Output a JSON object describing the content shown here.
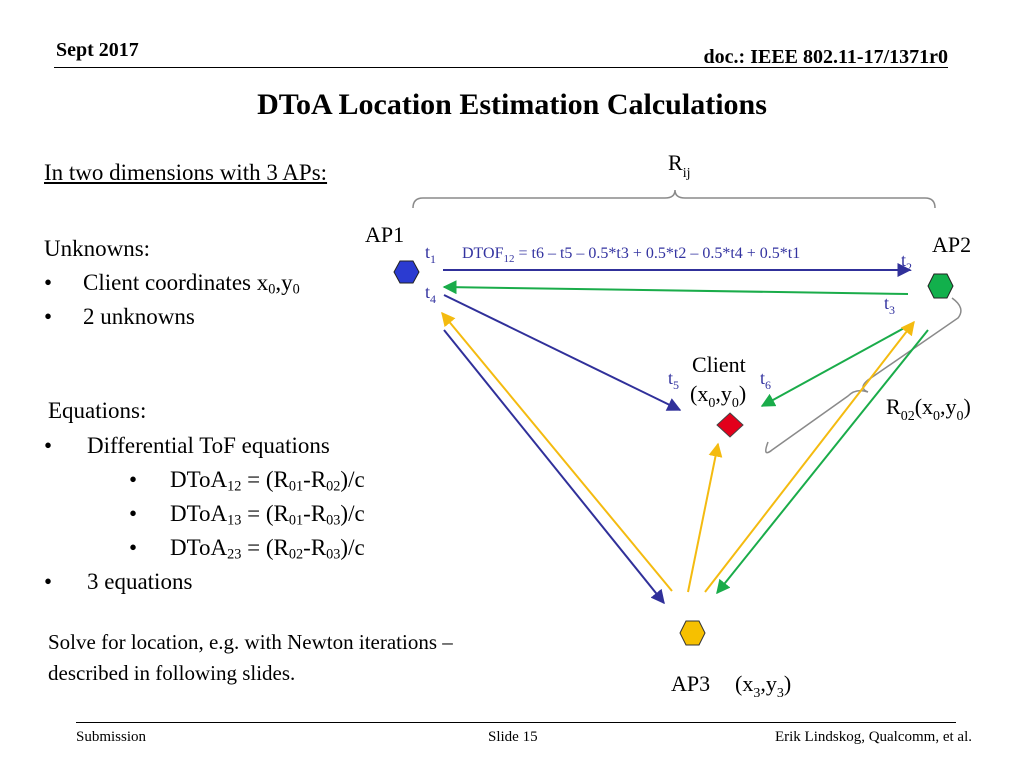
{
  "header": {
    "date": "Sept 2017",
    "doc": "doc.: IEEE 802.11-17/1371r0"
  },
  "slide": {
    "title": "DToA Location Estimation Calculations",
    "subheading": "In two dimensions with 3 APs:",
    "unknowns_heading": "Unknowns:",
    "unknowns": [
      {
        "text": "Client coordinates x",
        "sub1": "0",
        "mid": ",y",
        "sub2": "0"
      },
      {
        "text": "2 unknowns"
      }
    ],
    "equations_heading": "Equations:",
    "equations_bullets": [
      "Differential ToF equations",
      "3 equations"
    ],
    "equations": [
      {
        "a": "DToA",
        "a_sub": "12",
        "eq": " = (R",
        "r1_sub": "01",
        "minus": "-R",
        "r2_sub": "02",
        "tail": ")/c"
      },
      {
        "a": "DToA",
        "a_sub": "13",
        "eq": " = (R",
        "r1_sub": "01",
        "minus": "-R",
        "r2_sub": "03",
        "tail": ")/c"
      },
      {
        "a": "DToA",
        "a_sub": "23",
        "eq": " = (R",
        "r1_sub": "02",
        "minus": "-R",
        "r2_sub": "03",
        "tail": ")/c"
      }
    ],
    "bullet_char": "•",
    "solve_text": "Solve for location, e.g. with Newton iterations – described in following slides."
  },
  "diagram": {
    "rij": {
      "main": "R",
      "sub": "ij"
    },
    "ap1_label": "AP1",
    "ap2_label": "AP2",
    "ap3_label": "AP3",
    "ap3_coords": {
      "x": "(x",
      "sub1": "3",
      "y": ",y",
      "sub2": "3",
      "close": ")"
    },
    "client_label": "Client",
    "client_coords": {
      "x": "(x",
      "sub1": "0",
      "y": ",y",
      "sub2": "0",
      "close": ")"
    },
    "r02_label": {
      "r": "R",
      "rsub": "02",
      "x": "(x",
      "sub1": "0",
      "y": ",y",
      "sub2": "0",
      "close": ")"
    },
    "dtof_formula": {
      "prefix": "DTOF",
      "sub": "12",
      "rest": " = t6 – t5 – 0.5*t3 + 0.5*t2 – 0.5*t4 + 0.5*t1"
    },
    "times": {
      "t1": {
        "t": "t",
        "sub": "1"
      },
      "t2": {
        "t": "t",
        "sub": "2"
      },
      "t3": {
        "t": "t",
        "sub": "3"
      },
      "t4": {
        "t": "t",
        "sub": "4"
      },
      "t5": {
        "t": "t",
        "sub": "5"
      },
      "t6": {
        "t": "t",
        "sub": "6"
      }
    },
    "colors": {
      "ap1": "#2b3bd1",
      "ap2": "#12b04c",
      "ap3": "#f6c000",
      "client": "#e3001b",
      "blue_arrow": "#30309a",
      "green_arrow": "#1aac4a",
      "yellow_arrow": "#f4bb10",
      "time_label": "#3333a0",
      "brace": "#8a8a8a"
    }
  },
  "footer": {
    "left": "Submission",
    "center": "Slide 15",
    "right": "Erik Lindskog, Qualcomm, et al."
  }
}
